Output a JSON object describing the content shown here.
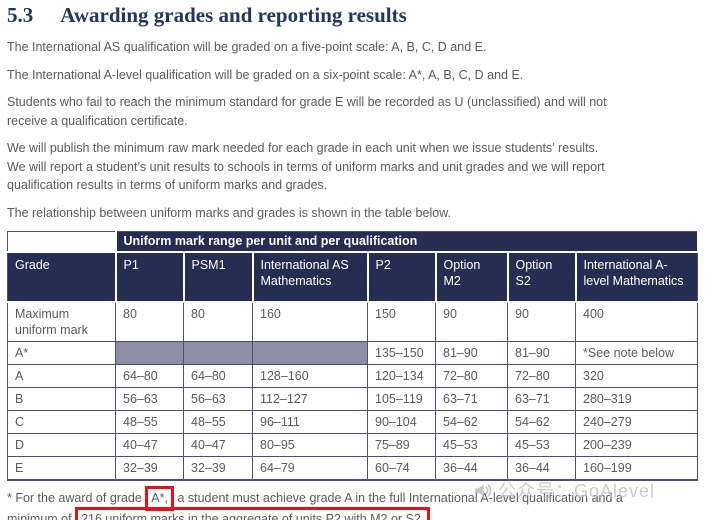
{
  "heading": {
    "number": "5.3",
    "title": "Awarding grades and reporting results"
  },
  "paragraphs": [
    "The International AS qualification will be graded on a five-point scale: A, B, C, D and E.",
    "The International A-level qualification will be graded on a six-point scale: A*, A, B, C, D and E.",
    "Students who fail to reach the minimum standard for grade E will be recorded as U (unclassified) and will not\nreceive a qualification certificate.",
    "We will publish the minimum raw mark needed for each grade in each unit when we issue students’ results.\nWe will report a student’s unit results to schools in terms of uniform marks and unit grades and we will report\nqualification results in terms of uniform marks and grades.",
    "The relationship between uniform marks and grades is shown in the table below."
  ],
  "table": {
    "band_header": "Uniform mark range per unit and per qualification",
    "columns": [
      "Grade",
      "P1",
      "PSM1",
      "International AS Mathematics",
      "P2",
      "Option M2",
      "Option S2",
      "International A-level Mathematics"
    ],
    "rows": [
      {
        "label": "Maximum uniform mark",
        "cells": [
          "80",
          "80",
          "160",
          "150",
          "90",
          "90",
          "400"
        ]
      },
      {
        "label": "A*",
        "cells": [
          null,
          null,
          null,
          "135–150",
          "81–90",
          "81–90",
          "*See note below"
        ]
      },
      {
        "label": "A",
        "cells": [
          "64–80",
          "64–80",
          "128–160",
          "120–134",
          "72–80",
          "72–80",
          "320"
        ]
      },
      {
        "label": "B",
        "cells": [
          "56–63",
          "56–63",
          "112–127",
          "105–119",
          "63–71",
          "63–71",
          "280–319"
        ]
      },
      {
        "label": "C",
        "cells": [
          "48–55",
          "48–55",
          "96–111",
          "90–104",
          "54–62",
          "54–62",
          "240–279"
        ]
      },
      {
        "label": "D",
        "cells": [
          "40–47",
          "40–47",
          "80–95",
          "75–89",
          "45–53",
          "45–53",
          "200–239"
        ]
      },
      {
        "label": "E",
        "cells": [
          "32–39",
          "32–39",
          "64–79",
          "60–74",
          "36–44",
          "36–44",
          "160–199"
        ]
      }
    ]
  },
  "footnote": {
    "pre": "* For the award of grade ",
    "highlight1": "A*,",
    "mid": " a student must achieve grade A in the full International A-level qualification and a\nminimum of ",
    "highlight2": "216 uniform marks in the aggregate of units P2 with M2 or S2."
  },
  "watermark": {
    "label": "公众号：GoAlevel",
    "icon": "megaphone-icon"
  },
  "colors": {
    "heading_blue": "#20375f",
    "table_header_navy": "#252e52",
    "shaded_cell_grey": "#8d8ea3",
    "body_grey": "#5a5b5e",
    "annotation_red": "#e0151b",
    "watermark_grey": "#c7c7c7"
  }
}
